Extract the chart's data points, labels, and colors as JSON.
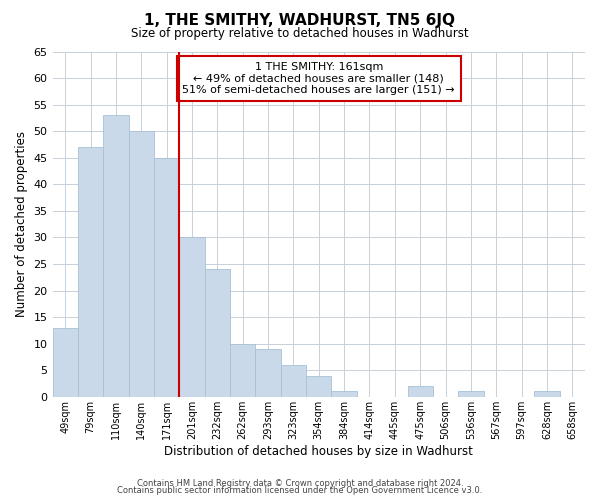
{
  "title": "1, THE SMITHY, WADHURST, TN5 6JQ",
  "subtitle": "Size of property relative to detached houses in Wadhurst",
  "xlabel": "Distribution of detached houses by size in Wadhurst",
  "ylabel": "Number of detached properties",
  "bar_labels": [
    "49sqm",
    "79sqm",
    "110sqm",
    "140sqm",
    "171sqm",
    "201sqm",
    "232sqm",
    "262sqm",
    "293sqm",
    "323sqm",
    "354sqm",
    "384sqm",
    "414sqm",
    "445sqm",
    "475sqm",
    "506sqm",
    "536sqm",
    "567sqm",
    "597sqm",
    "628sqm",
    "658sqm"
  ],
  "bar_values": [
    13,
    47,
    53,
    50,
    45,
    30,
    24,
    10,
    9,
    6,
    4,
    1,
    0,
    0,
    2,
    0,
    1,
    0,
    0,
    1,
    0
  ],
  "bar_color": "#c9d9ea",
  "bar_edge_color": "#a8c0d6",
  "vline_color": "#cc0000",
  "ylim": [
    0,
    65
  ],
  "yticks": [
    0,
    5,
    10,
    15,
    20,
    25,
    30,
    35,
    40,
    45,
    50,
    55,
    60,
    65
  ],
  "annotation_title": "1 THE SMITHY: 161sqm",
  "annotation_line1": "← 49% of detached houses are smaller (148)",
  "annotation_line2": "51% of semi-detached houses are larger (151) →",
  "annotation_box_color": "#ffffff",
  "annotation_box_edge": "#cc0000",
  "footer_line1": "Contains HM Land Registry data © Crown copyright and database right 2024.",
  "footer_line2": "Contains public sector information licensed under the Open Government Licence v3.0.",
  "background_color": "#ffffff",
  "grid_color": "#c8d0da"
}
